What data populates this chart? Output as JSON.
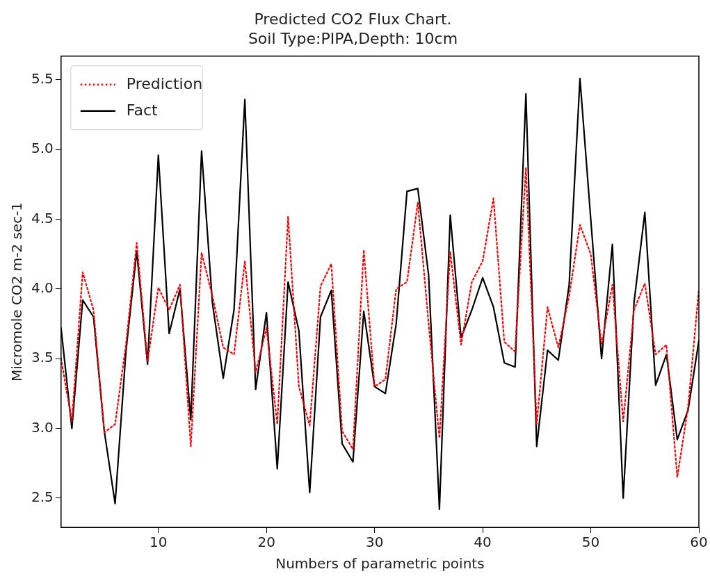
{
  "chart_data": {
    "type": "line",
    "title": "Predicted CO2 Flux Chart.",
    "subtitle": "Soil Type:PIPA,Depth: 10cm",
    "xlabel": "Numbers of parametric points",
    "ylabel": "Micromole CO2 m-2 sec-1",
    "x": [
      1,
      2,
      3,
      4,
      5,
      6,
      7,
      8,
      9,
      10,
      11,
      12,
      13,
      14,
      15,
      16,
      17,
      18,
      19,
      20,
      21,
      22,
      23,
      24,
      25,
      26,
      27,
      28,
      29,
      30,
      31,
      32,
      33,
      34,
      35,
      36,
      37,
      38,
      39,
      40,
      41,
      42,
      43,
      44,
      45,
      46,
      47,
      48,
      49,
      50,
      51,
      52,
      53,
      54,
      55,
      56,
      57,
      58,
      59,
      60
    ],
    "series": [
      {
        "name": "Prediction",
        "color": "#ff0000",
        "line_style": "dotted",
        "values": [
          3.5,
          3.05,
          4.12,
          3.85,
          2.97,
          3.03,
          3.6,
          4.33,
          3.48,
          4.01,
          3.85,
          4.03,
          2.87,
          4.26,
          3.95,
          3.58,
          3.53,
          4.2,
          3.4,
          3.72,
          3.03,
          4.52,
          3.3,
          3.02,
          4.02,
          4.18,
          2.98,
          2.85,
          4.28,
          3.3,
          3.35,
          4.0,
          4.05,
          4.62,
          3.75,
          2.93,
          4.27,
          3.6,
          4.05,
          4.2,
          4.65,
          3.62,
          3.55,
          4.87,
          3.03,
          3.87,
          3.58,
          3.95,
          4.46,
          4.25,
          3.6,
          4.03,
          3.05,
          3.85,
          4.04,
          3.53,
          3.6,
          2.65,
          3.15,
          4.0
        ]
      },
      {
        "name": "Fact",
        "color": "#000000",
        "line_style": "solid",
        "values": [
          3.72,
          3.0,
          3.92,
          3.8,
          2.98,
          2.46,
          3.55,
          4.27,
          3.46,
          4.96,
          3.68,
          4.0,
          3.06,
          4.99,
          3.9,
          3.36,
          3.85,
          5.36,
          3.28,
          3.83,
          2.71,
          4.05,
          3.7,
          2.54,
          3.8,
          3.99,
          2.89,
          2.76,
          3.84,
          3.3,
          3.25,
          3.75,
          4.7,
          4.72,
          4.1,
          2.42,
          4.53,
          3.65,
          3.85,
          4.08,
          3.87,
          3.47,
          3.44,
          5.4,
          2.87,
          3.56,
          3.49,
          4.03,
          5.51,
          4.5,
          3.5,
          4.32,
          2.5,
          3.9,
          4.55,
          3.31,
          3.53,
          2.92,
          3.13,
          3.63
        ]
      }
    ],
    "xlim": [
      1,
      60
    ],
    "xticks": [
      10,
      20,
      30,
      40,
      50,
      60
    ],
    "ylim": [
      2.29,
      5.67
    ],
    "yticks": [
      {
        "value": 2.5,
        "label": "2.5"
      },
      {
        "value": 3.0,
        "label": "3.0"
      },
      {
        "value": 3.5,
        "label": "3.5"
      },
      {
        "value": 4.0,
        "label": "4.0"
      },
      {
        "value": 4.5,
        "label": "4.5"
      },
      {
        "value": 5.0,
        "label": "5.0"
      },
      {
        "value": 5.5,
        "label": "5.5"
      }
    ],
    "grid": false,
    "legend": "top left",
    "marker": "none"
  }
}
